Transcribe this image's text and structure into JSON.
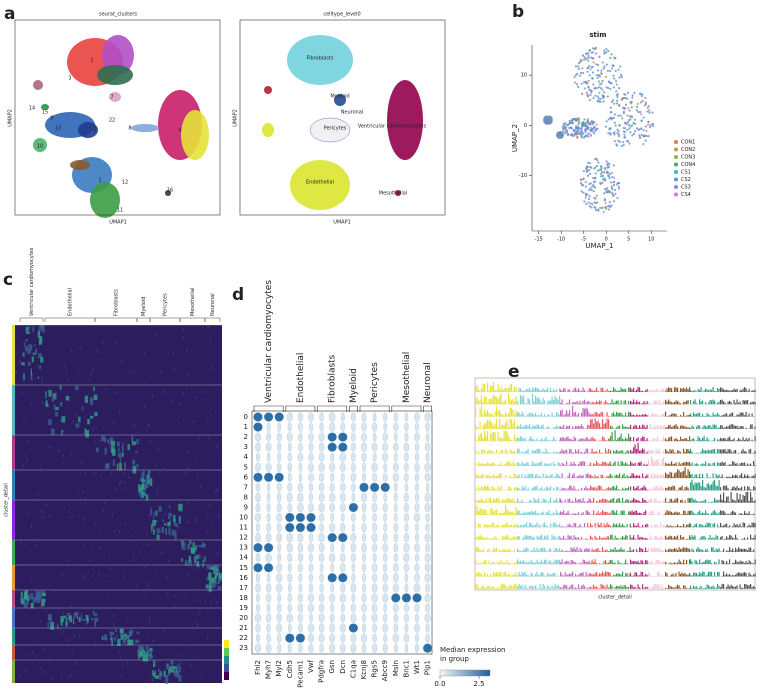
{
  "panel_a": {
    "letter": "a",
    "left_title": "seurat_clusters",
    "right_title": "celltype_level0",
    "xlabel": "UMAP1",
    "ylabel": "UMAP2",
    "cluster_labels": [
      "2",
      "3",
      "7",
      "5",
      "13",
      "8",
      "4",
      "1",
      "12",
      "11",
      "10",
      "9",
      "14",
      "15",
      "16",
      "22"
    ],
    "celltype_labels": [
      "Fibroblasts",
      "Neuronal",
      "Myeloid",
      "Ventricular cardiomyocytes",
      "Pericytes",
      "Endothelial",
      "Mesothelial"
    ]
  },
  "panel_b": {
    "letter": "b",
    "title": "stim",
    "xlabel": "UMAP_1",
    "ylabel": "UMAP_2",
    "xlim": [
      -16.5,
      13.5
    ],
    "ylim": [
      16,
      -21
    ],
    "xticks": [
      -15,
      -10,
      -5,
      0,
      5,
      10
    ],
    "yticks": [
      10,
      0,
      -10
    ],
    "legend": [
      {
        "name": "CON1",
        "color": "#e8735f"
      },
      {
        "name": "CON2",
        "color": "#c99c3a"
      },
      {
        "name": "CON3",
        "color": "#8db43d"
      },
      {
        "name": "CON4",
        "color": "#3db37a"
      },
      {
        "name": "CS1",
        "color": "#3fbfc2"
      },
      {
        "name": "CS2",
        "color": "#4aa2dc"
      },
      {
        "name": "CS3",
        "color": "#8d8ae0"
      },
      {
        "name": "CS4",
        "color": "#d77bd4"
      }
    ]
  },
  "panel_c": {
    "letter": "c",
    "ylabel": "cluster_detail",
    "groups": [
      "Ventricular cardiomyocytes",
      "Endothelial",
      "Fibroblasts",
      "Myeloid",
      "Pericytes",
      "Mesothelial",
      "Neuronal"
    ]
  },
  "panel_d": {
    "letter": "d",
    "groups": [
      "Ventricular cardiomyocytes",
      "Endothelial",
      "Fibroblasts",
      "Myeloid",
      "Pericytes",
      "Mesothelial",
      "Neuronal"
    ],
    "genes": [
      "Fhl2",
      "Myh7",
      "Myl2",
      "Cdh5",
      "Pecam1",
      "Vwf",
      "Pdgfra",
      "Gsn",
      "Dcn",
      "C1qa",
      "Kcnj8",
      "Rgs5",
      "Abcc9",
      "Msln",
      "Bnc1",
      "Wt1",
      "Plp1"
    ],
    "clusters": [
      "0",
      "1",
      "2",
      "3",
      "4",
      "5",
      "6",
      "7",
      "8",
      "9",
      "10",
      "11",
      "12",
      "13",
      "14",
      "15",
      "16",
      "17",
      "18",
      "19",
      "20",
      "21",
      "22",
      "23"
    ],
    "legend_title": "Median expression\nin group",
    "cbar_lim": [
      0,
      3.2
    ],
    "cbar_ticks": [
      {
        "value": 0,
        "label": "0.0"
      },
      2.5
    ]
  },
  "panel_e": {
    "letter": "e",
    "xlabel": "cluster_detail"
  }
}
